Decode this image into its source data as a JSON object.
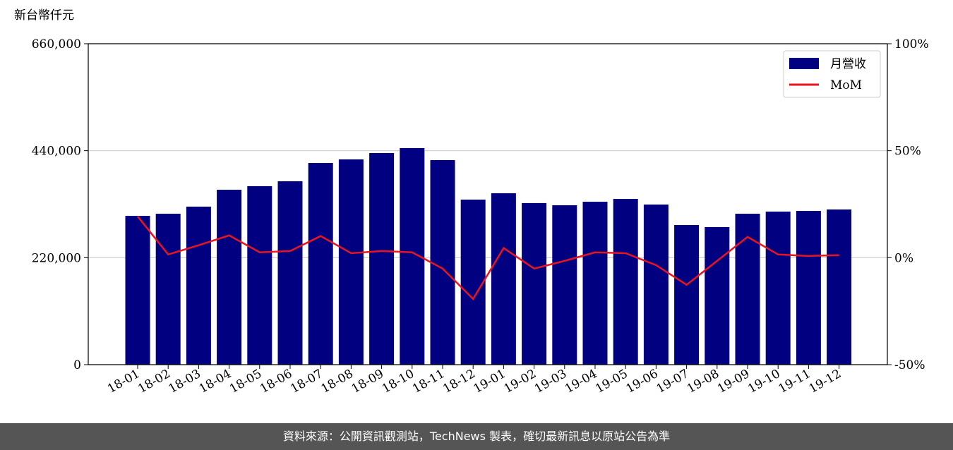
{
  "chart_data": {
    "type": "bar-line",
    "y_label": "新台幣仟元",
    "categories": [
      "18-01",
      "18-02",
      "18-03",
      "18-04",
      "18-05",
      "18-06",
      "18-07",
      "18-08",
      "18-09",
      "18-10",
      "18-11",
      "18-12",
      "19-01",
      "19-02",
      "19-03",
      "19-04",
      "19-05",
      "19-06",
      "19-07",
      "19-08",
      "19-09",
      "19-10",
      "19-11",
      "19-12"
    ],
    "series": [
      {
        "name": "月營收",
        "type": "bar",
        "color": "#000080",
        "values": [
          306000,
          310400,
          325000,
          359700,
          367000,
          377100,
          414900,
          422100,
          435200,
          445300,
          420700,
          339400,
          352500,
          332200,
          327800,
          335100,
          340900,
          329300,
          287200,
          282900,
          310400,
          314800,
          316200,
          319100
        ]
      },
      {
        "name": "MoM",
        "type": "line",
        "axis": "y2",
        "color": "#e8141e",
        "values": [
          19.3,
          1.5,
          5.8,
          10.4,
          2.5,
          3.1,
          10.1,
          2.1,
          3.1,
          2.5,
          -5.1,
          -19.3,
          4.5,
          -5.1,
          -1.5,
          2.5,
          2.1,
          -3.5,
          -12.7,
          -1.5,
          9.7,
          1.5,
          0.8,
          1.2
        ]
      }
    ],
    "ylim": [
      0,
      660000
    ],
    "yticks": [
      0,
      {
        "value": 220000,
        "label": "220,000"
      },
      {
        "value": 440000,
        "label": "440,000"
      },
      {
        "value": 660000,
        "label": "660,000"
      }
    ],
    "y2lim": [
      -50,
      100
    ],
    "y2ticks": [
      {
        "value": -50,
        "label": "-50%"
      },
      {
        "value": 0,
        "label": "0%"
      },
      {
        "value": 50,
        "label": "50%"
      },
      {
        "value": 100,
        "label": "100%"
      }
    ],
    "grid": true,
    "legend": "upper right"
  },
  "footer": "資料來源：公開資訊觀測站，TechNews 製表，確切最新訊息以原站公告為準"
}
